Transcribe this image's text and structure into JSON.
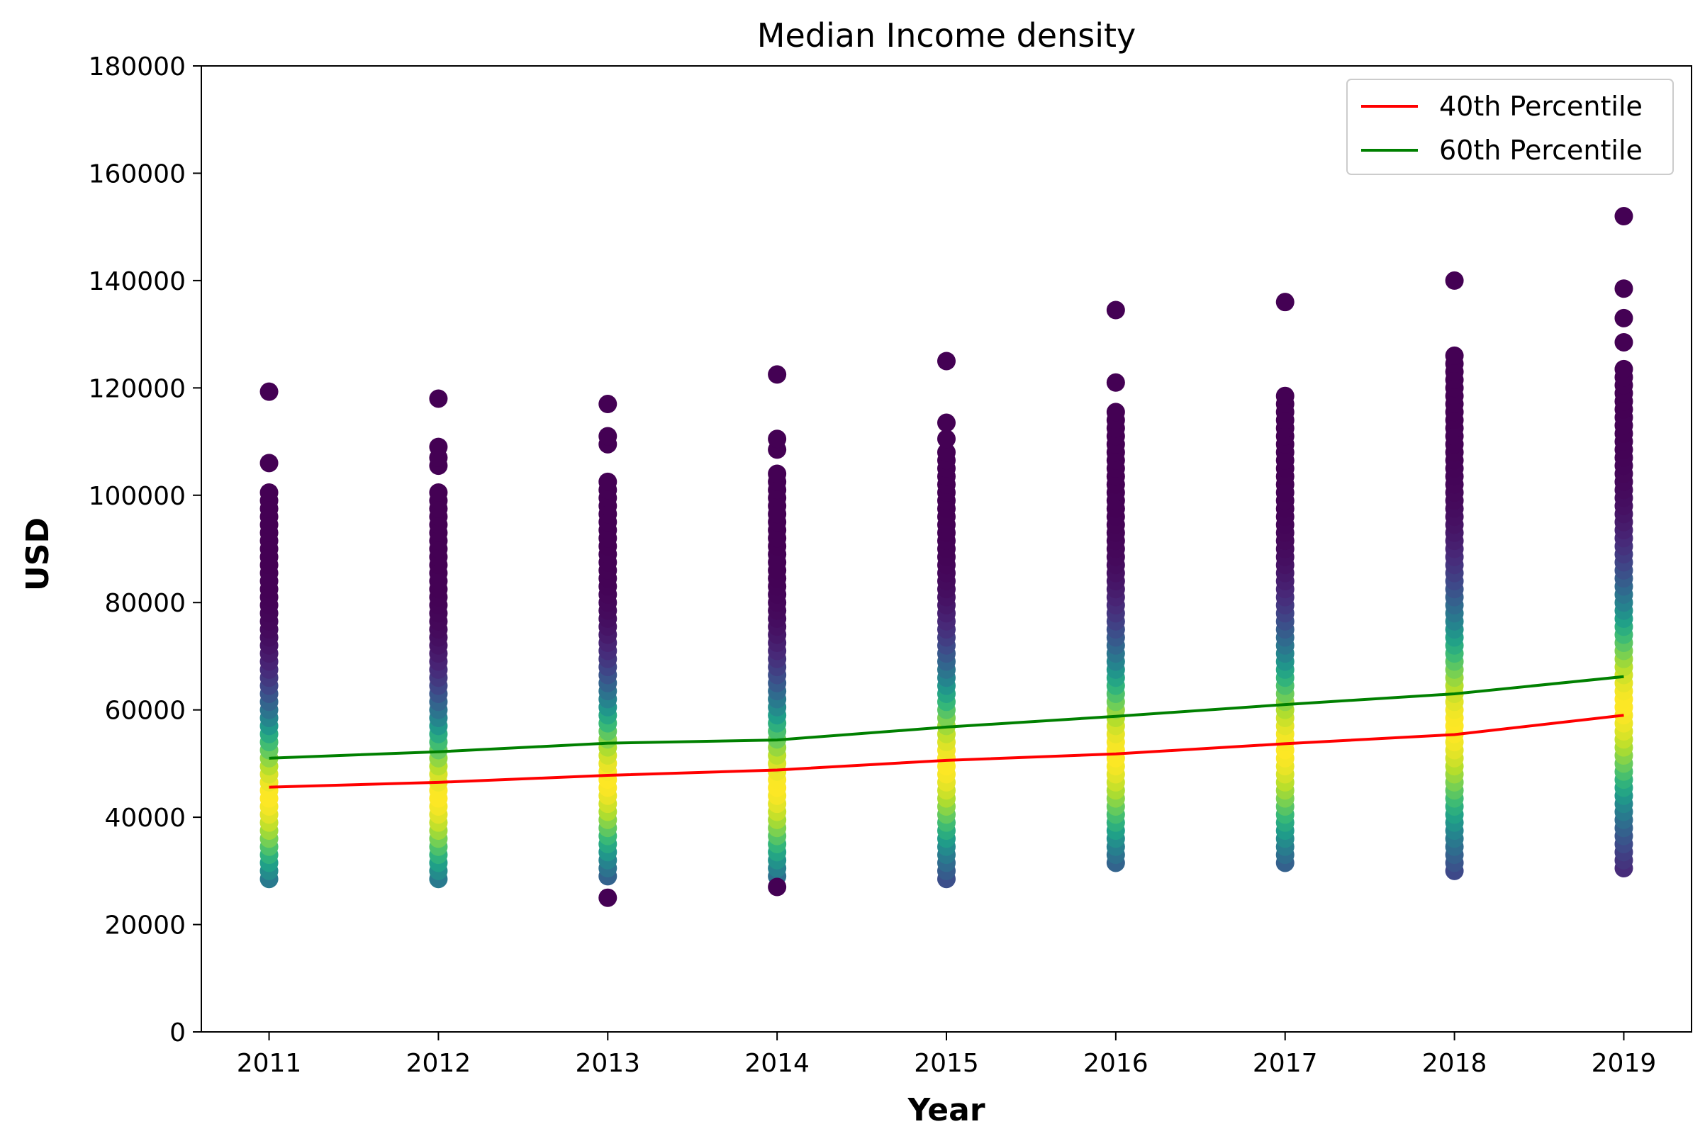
{
  "chart_data": {
    "type": "scatter",
    "title": "Median Income density",
    "xlabel": "Year",
    "ylabel": "USD",
    "x_ticks": [
      "2011",
      "2012",
      "2013",
      "2014",
      "2015",
      "2016",
      "2017",
      "2018",
      "2019"
    ],
    "y_ticks": [
      "0",
      "20000",
      "40000",
      "60000",
      "80000",
      "100000",
      "120000",
      "140000",
      "160000",
      "180000"
    ],
    "ylim": [
      0,
      180000
    ],
    "xlim": [
      2010.6,
      2019.4
    ],
    "grid": false,
    "legend_position": "top-right",
    "colormap": "viridis",
    "colors": {
      "p40": "#ff0000",
      "p60": "#008000",
      "outlier": "#440154"
    },
    "scatter": [
      {
        "year": 2011,
        "min": 28500,
        "max": 101000,
        "peak": 44000,
        "outliers": [
          106000,
          119300
        ]
      },
      {
        "year": 2012,
        "min": 28500,
        "max": 101000,
        "peak": 44000,
        "outliers": [
          105500,
          107000,
          109000,
          118000
        ]
      },
      {
        "year": 2013,
        "min": 29000,
        "max": 103000,
        "peak": 47000,
        "outliers": [
          25000,
          109500,
          111000,
          117000
        ]
      },
      {
        "year": 2014,
        "min": 29000,
        "max": 104000,
        "peak": 46000,
        "outliers": [
          27000,
          108500,
          110500,
          122500
        ]
      },
      {
        "year": 2015,
        "min": 28500,
        "max": 108000,
        "peak": 50000,
        "outliers": [
          110500,
          113500,
          125000
        ]
      },
      {
        "year": 2016,
        "min": 31500,
        "max": 116000,
        "peak": 52000,
        "outliers": [
          121000,
          134500
        ]
      },
      {
        "year": 2017,
        "min": 31500,
        "max": 119000,
        "peak": 53000,
        "outliers": [
          136000
        ]
      },
      {
        "year": 2018,
        "min": 30000,
        "max": 127000,
        "peak": 57000,
        "outliers": [
          140000
        ]
      },
      {
        "year": 2019,
        "min": 30500,
        "max": 124000,
        "peak": 61000,
        "outliers": [
          128500,
          133000,
          138500,
          152000
        ]
      }
    ],
    "series": [
      {
        "name": "40th Percentile",
        "x": [
          2011,
          2012,
          2013,
          2014,
          2015,
          2016,
          2017,
          2018,
          2019
        ],
        "values": [
          45600,
          46500,
          47800,
          48800,
          50600,
          51800,
          53700,
          55400,
          59000
        ]
      },
      {
        "name": "60th Percentile",
        "x": [
          2011,
          2012,
          2013,
          2014,
          2015,
          2016,
          2017,
          2018,
          2019
        ],
        "values": [
          51000,
          52200,
          53800,
          54400,
          56800,
          58800,
          61000,
          63000,
          66200
        ]
      }
    ]
  }
}
